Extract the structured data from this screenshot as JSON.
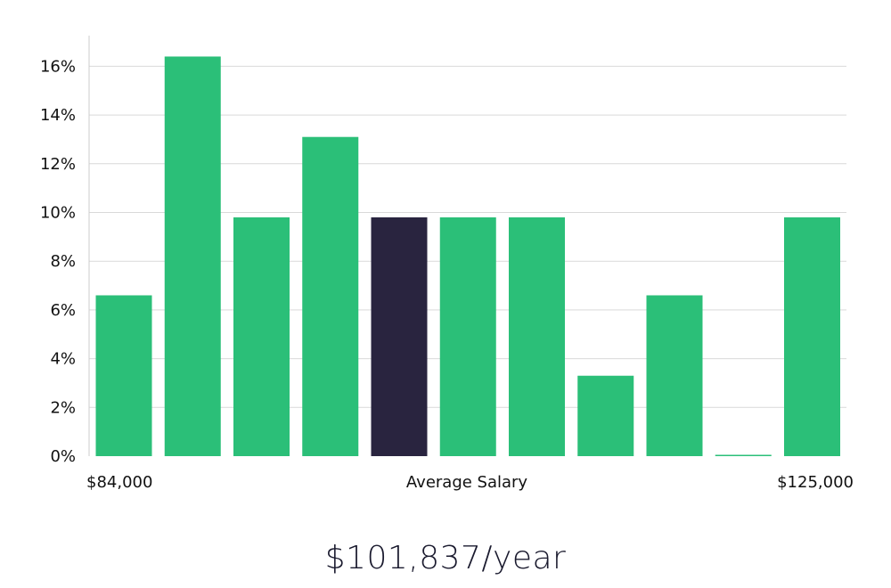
{
  "colors": {
    "bar": "#2bbf78",
    "highlight_bar": "#29243f",
    "grid": "#d9d9d9",
    "axis": "#cccccc",
    "text": "#111111"
  },
  "chart_data": {
    "type": "bar",
    "values": [
      6.6,
      16.4,
      9.8,
      13.1,
      9.8,
      9.8,
      9.8,
      3.3,
      6.6,
      0,
      9.8
    ],
    "highlight_index": 4,
    "ylim": [
      0,
      17
    ],
    "yticks": [
      0,
      2,
      4,
      6,
      8,
      10,
      12,
      14,
      16
    ],
    "ytick_labels": [
      "0%",
      "2%",
      "4%",
      "6%",
      "8%",
      "10%",
      "12%",
      "14%",
      "16%"
    ],
    "x_axis_labels": {
      "left": "$84,000",
      "center": "Average Salary",
      "right": "$125,000"
    },
    "grid": true
  },
  "summary": {
    "average_salary": "$101,837/year"
  }
}
